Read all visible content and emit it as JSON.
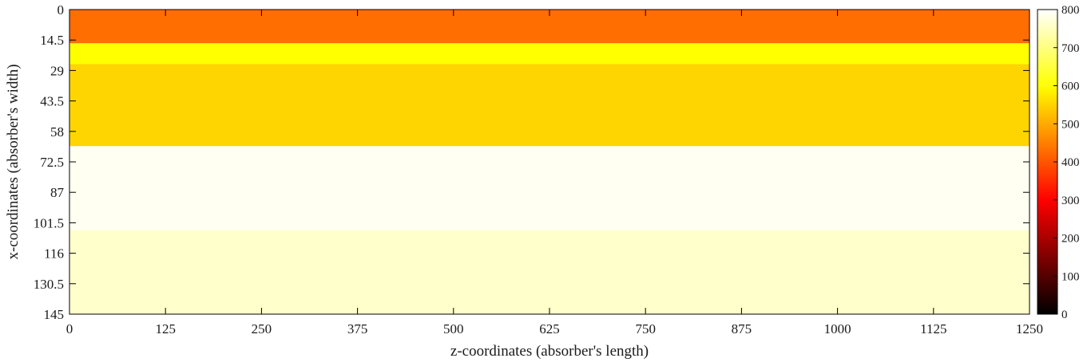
{
  "chart_data": {
    "type": "heatmap",
    "xlabel": "z-coordinates (absorber's length)",
    "ylabel": "x-coordinates (absorber's width)",
    "xlim": [
      0,
      1250
    ],
    "ylim": [
      0,
      145
    ],
    "y_inverted": true,
    "x_ticks": [
      "0",
      "125",
      "250",
      "375",
      "500",
      "625",
      "750",
      "875",
      "1000",
      "1125",
      "1250"
    ],
    "y_ticks": [
      "0",
      "14.5",
      "29",
      "43.5",
      "58",
      "72.5",
      "87",
      "101.5",
      "116",
      "130.5",
      "145"
    ],
    "colorbar": {
      "colormap": "hot",
      "range": [
        0,
        800
      ],
      "ticks": [
        "0",
        "100",
        "200",
        "300",
        "400",
        "500",
        "600",
        "700",
        "800"
      ]
    },
    "bands": [
      {
        "x_from": 0,
        "x_to": 16,
        "value": 430
      },
      {
        "x_from": 16,
        "x_to": 26,
        "value": 600
      },
      {
        "x_from": 26,
        "x_to": 65,
        "value": 550
      },
      {
        "x_from": 65,
        "x_to": 105,
        "value": 790
      },
      {
        "x_from": 105,
        "x_to": 145,
        "value": 760
      }
    ]
  }
}
